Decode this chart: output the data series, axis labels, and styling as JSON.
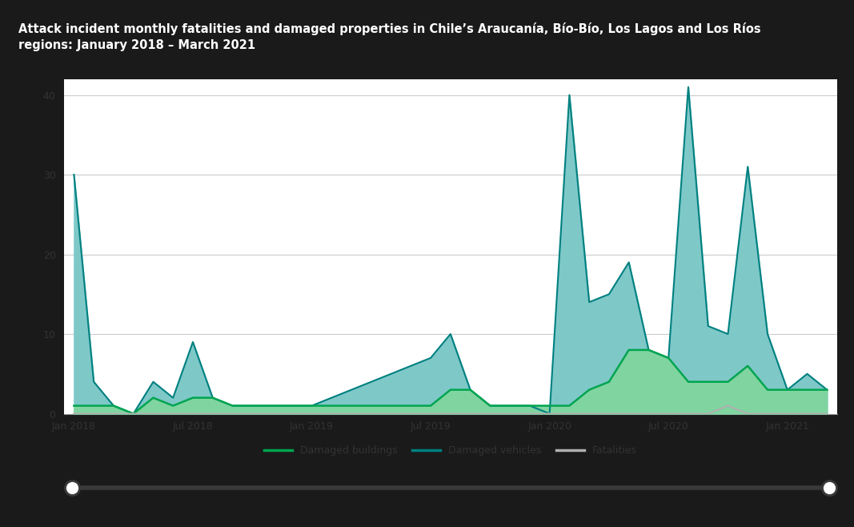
{
  "title": "Attack incident monthly fatalities and damaged properties in Chile’s Araucanía, Bío-Bío, Los Lagos and Los Ríos\nregions: January 2018 – March 2021",
  "title_bg_color": "#6d6d6d",
  "title_text_color": "#ffffff",
  "title_fontsize": 10.5,
  "chart_bg_color": "#ffffff",
  "outer_bg_color": "#1a1a1a",
  "border_color": "#444444",
  "ylim": [
    0,
    42
  ],
  "yticks": [
    0,
    10,
    20,
    30,
    40
  ],
  "grid_color": "#cccccc",
  "x_tick_labels": [
    "Jan 2018",
    "Jul 2018",
    "Jan 2019",
    "Jul 2019",
    "Jan 2020",
    "Jul 2020",
    "Jan 2021"
  ],
  "x_tick_positions": [
    0,
    6,
    12,
    18,
    24,
    30,
    36
  ],
  "months_total": 39,
  "damaged_vehicles": [
    30,
    4,
    1,
    0,
    4,
    2,
    9,
    2,
    1,
    1,
    1,
    1,
    1,
    2,
    3,
    4,
    5,
    6,
    7,
    10,
    3,
    1,
    1,
    1,
    0,
    40,
    14,
    15,
    19,
    8,
    7,
    41,
    11,
    10,
    31,
    10,
    3,
    5,
    3
  ],
  "damaged_buildings": [
    1,
    1,
    1,
    0,
    2,
    1,
    2,
    2,
    1,
    1,
    1,
    1,
    1,
    1,
    1,
    1,
    1,
    1,
    1,
    3,
    3,
    1,
    1,
    1,
    1,
    1,
    3,
    4,
    8,
    8,
    7,
    4,
    4,
    4,
    6,
    3,
    3,
    3,
    3
  ],
  "fatalities": [
    0,
    0,
    0,
    0,
    0,
    0,
    0,
    0,
    0,
    0,
    0,
    0,
    0,
    0,
    0,
    0,
    0,
    0,
    0,
    0,
    0,
    0,
    0,
    0,
    0,
    0,
    0,
    0,
    0,
    0,
    0,
    0,
    0,
    1,
    0,
    0,
    0,
    0,
    0
  ],
  "vehicles_color": "#008080",
  "vehicles_fill_color": "#7fc8c8",
  "buildings_color": "#00a550",
  "buildings_fill_color": "#80d4a0",
  "fatalities_color": "#b0b0b0",
  "legend_fontsize": 9,
  "tick_fontsize": 9,
  "axis_label_color": "#333333"
}
